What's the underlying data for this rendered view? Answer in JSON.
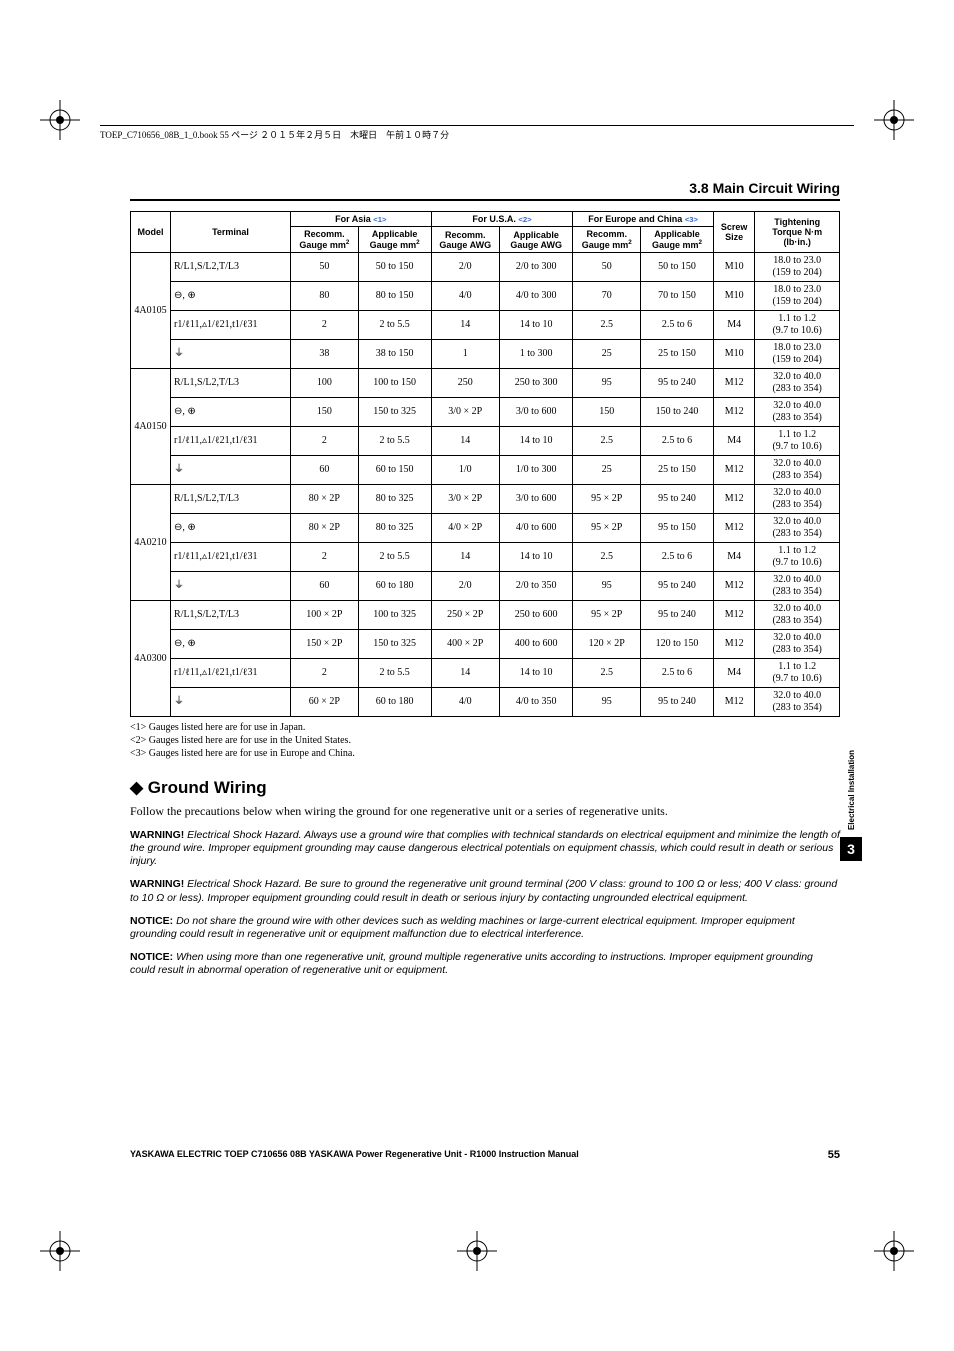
{
  "header_line": "TOEP_C710656_08B_1_0.book  55 ページ  ２０１５年２月５日　木曜日　午前１０時７分",
  "section_title": "3.8  Main Circuit Wiring",
  "table": {
    "header_groups": [
      "For Asia",
      "For U.S.A.",
      "For Europe and China"
    ],
    "header_refs": [
      "<1>",
      "<2>",
      "<3>"
    ],
    "col_model": "Model",
    "col_terminal": "Terminal",
    "col_recomm_mm": "Recomm. Gauge mm",
    "col_applic_mm": "Applicable Gauge mm",
    "col_recomm_awg": "Recomm. Gauge AWG",
    "col_applic_awg": "Applicable Gauge AWG",
    "col_screw": "Screw Size",
    "col_torque": "Tightening Torque N·m (lb·in.)",
    "models": [
      {
        "model": "4A0105",
        "rows": [
          {
            "term": "R/L1,S/L2,T/L3",
            "a": "50",
            "b": "50 to 150",
            "c": "2/0",
            "d": "2/0 to 300",
            "e": "50",
            "f": "50 to 150",
            "scr": "M10",
            "t1": "18.0 to 23.0",
            "t2": "(159 to 204)"
          },
          {
            "term": "⊖, ⊕",
            "a": "80",
            "b": "80 to 150",
            "c": "4/0",
            "d": "4/0 to 300",
            "e": "70",
            "f": "70 to 150",
            "scr": "M10",
            "t1": "18.0 to 23.0",
            "t2": "(159 to 204)"
          },
          {
            "term": "r1/ℓ11,▵1/ℓ21,t1/ℓ31",
            "a": "2",
            "b": "2 to 5.5",
            "c": "14",
            "d": "14 to 10",
            "e": "2.5",
            "f": "2.5 to 6",
            "scr": "M4",
            "t1": "1.1 to 1.2",
            "t2": "(9.7 to 10.6)"
          },
          {
            "term": "⏚",
            "a": "38",
            "b": "38 to 150",
            "c": "1",
            "d": "1 to 300",
            "e": "25",
            "f": "25 to 150",
            "scr": "M10",
            "t1": "18.0 to 23.0",
            "t2": "(159 to 204)"
          }
        ]
      },
      {
        "model": "4A0150",
        "rows": [
          {
            "term": "R/L1,S/L2,T/L3",
            "a": "100",
            "b": "100 to 150",
            "c": "250",
            "d": "250 to 300",
            "e": "95",
            "f": "95 to 240",
            "scr": "M12",
            "t1": "32.0 to 40.0",
            "t2": "(283 to 354)"
          },
          {
            "term": "⊖, ⊕",
            "a": "150",
            "b": "150 to 325",
            "c": "3/0 × 2P",
            "d": "3/0 to 600",
            "e": "150",
            "f": "150 to 240",
            "scr": "M12",
            "t1": "32.0 to 40.0",
            "t2": "(283 to 354)"
          },
          {
            "term": "r1/ℓ11,▵1/ℓ21,t1/ℓ31",
            "a": "2",
            "b": "2 to 5.5",
            "c": "14",
            "d": "14 to 10",
            "e": "2.5",
            "f": "2.5 to 6",
            "scr": "M4",
            "t1": "1.1 to 1.2",
            "t2": "(9.7 to 10.6)"
          },
          {
            "term": "⏚",
            "a": "60",
            "b": "60 to 150",
            "c": "1/0",
            "d": "1/0 to 300",
            "e": "25",
            "f": "25 to 150",
            "scr": "M12",
            "t1": "32.0 to 40.0",
            "t2": "(283 to 354)"
          }
        ]
      },
      {
        "model": "4A0210",
        "rows": [
          {
            "term": "R/L1,S/L2,T/L3",
            "a": "80 × 2P",
            "b": "80 to 325",
            "c": "3/0 × 2P",
            "d": "3/0 to 600",
            "e": "95 × 2P",
            "f": "95 to 240",
            "scr": "M12",
            "t1": "32.0 to 40.0",
            "t2": "(283 to 354)"
          },
          {
            "term": "⊖, ⊕",
            "a": "80 × 2P",
            "b": "80 to 325",
            "c": "4/0 × 2P",
            "d": "4/0 to 600",
            "e": "95 × 2P",
            "f": "95 to 150",
            "scr": "M12",
            "t1": "32.0 to 40.0",
            "t2": "(283 to 354)"
          },
          {
            "term": "r1/ℓ11,▵1/ℓ21,t1/ℓ31",
            "a": "2",
            "b": "2 to 5.5",
            "c": "14",
            "d": "14 to 10",
            "e": "2.5",
            "f": "2.5 to 6",
            "scr": "M4",
            "t1": "1.1 to 1.2",
            "t2": "(9.7 to 10.6)"
          },
          {
            "term": "⏚",
            "a": "60",
            "b": "60 to 180",
            "c": "2/0",
            "d": "2/0 to 350",
            "e": "95",
            "f": "95 to 240",
            "scr": "M12",
            "t1": "32.0 to 40.0",
            "t2": "(283 to 354)"
          }
        ]
      },
      {
        "model": "4A0300",
        "rows": [
          {
            "term": "R/L1,S/L2,T/L3",
            "a": "100 × 2P",
            "b": "100 to 325",
            "c": "250 × 2P",
            "d": "250 to 600",
            "e": "95 × 2P",
            "f": "95 to 240",
            "scr": "M12",
            "t1": "32.0 to 40.0",
            "t2": "(283 to 354)"
          },
          {
            "term": "⊖, ⊕",
            "a": "150 × 2P",
            "b": "150 to 325",
            "c": "400 × 2P",
            "d": "400 to 600",
            "e": "120 × 2P",
            "f": "120 to 150",
            "scr": "M12",
            "t1": "32.0 to 40.0",
            "t2": "(283 to 354)"
          },
          {
            "term": "r1/ℓ11,▵1/ℓ21,t1/ℓ31",
            "a": "2",
            "b": "2 to 5.5",
            "c": "14",
            "d": "14 to 10",
            "e": "2.5",
            "f": "2.5 to 6",
            "scr": "M4",
            "t1": "1.1 to 1.2",
            "t2": "(9.7 to 10.6)"
          },
          {
            "term": "⏚",
            "a": "60 × 2P",
            "b": "60 to 180",
            "c": "4/0",
            "d": "4/0 to 350",
            "e": "95",
            "f": "95 to 240",
            "scr": "M12",
            "t1": "32.0 to 40.0",
            "t2": "(283 to 354)"
          }
        ]
      }
    ]
  },
  "notes": [
    "<1> Gauges listed here are for use in Japan.",
    "<2> Gauges listed here are for use in the United States.",
    "<3> Gauges listed here are for use in Europe and China."
  ],
  "ground_heading": "Ground Wiring",
  "ground_intro": "Follow the precautions below when wiring the ground for one regenerative unit or a series of regenerative units.",
  "warnings": [
    {
      "label": "WARNING!",
      "text": "Electrical Shock Hazard. Always use a ground wire that complies with technical standards on electrical equipment and minimize the length of the ground wire. Improper equipment grounding may cause dangerous electrical potentials on equipment chassis, which could result in death or serious injury."
    },
    {
      "label": "WARNING!",
      "text": "Electrical Shock Hazard. Be sure to ground the regenerative unit ground terminal (200 V class: ground to 100 Ω or less; 400 V class: ground to 10 Ω or less). Improper equipment grounding could result in death or serious injury by contacting ungrounded electrical equipment."
    },
    {
      "label": "NOTICE:",
      "text": "Do not share the ground wire with other devices such as welding machines or large-current electrical equipment. Improper equipment grounding could result in regenerative unit or equipment malfunction due to electrical interference."
    },
    {
      "label": "NOTICE:",
      "text": "When using more than one regenerative unit, ground multiple regenerative units according to instructions. Improper equipment grounding could result in abnormal operation of regenerative unit or equipment."
    }
  ],
  "side_tab_text": "Electrical Installation",
  "side_tab_num": "3",
  "footer_text": "YASKAWA ELECTRIC TOEP C710656 08B YASKAWA Power Regenerative Unit - R1000 Instruction Manual",
  "page_num": "55"
}
